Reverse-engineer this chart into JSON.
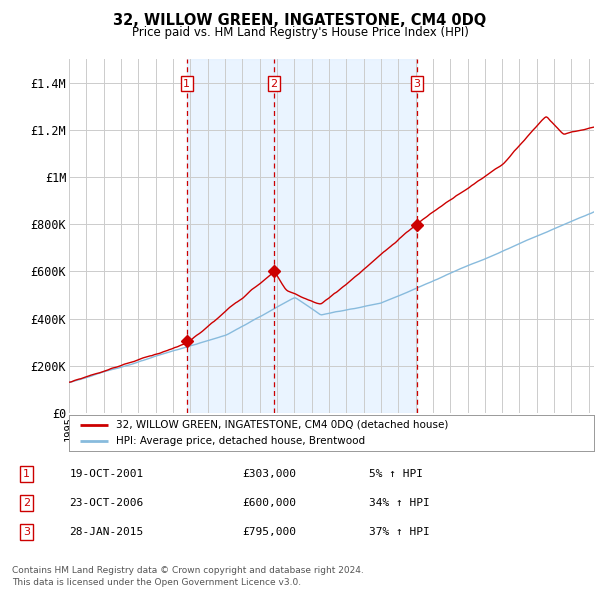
{
  "title": "32, WILLOW GREEN, INGATESTONE, CM4 0DQ",
  "subtitle": "Price paid vs. HM Land Registry's House Price Index (HPI)",
  "ylim": [
    0,
    1500000
  ],
  "yticks": [
    0,
    200000,
    400000,
    600000,
    800000,
    1000000,
    1200000,
    1400000
  ],
  "ytick_labels": [
    "£0",
    "£200K",
    "£400K",
    "£600K",
    "£800K",
    "£1M",
    "£1.2M",
    "£1.4M"
  ],
  "background_color": "#ffffff",
  "grid_color": "#cccccc",
  "property_color": "#cc0000",
  "hpi_color": "#88bbdd",
  "vline_color": "#cc0000",
  "shade_color": "#ddeeff",
  "sale_dates": [
    2001.8,
    2006.81,
    2015.07
  ],
  "sale_prices": [
    303000,
    600000,
    795000
  ],
  "sale_labels": [
    "1",
    "2",
    "3"
  ],
  "legend_property": "32, WILLOW GREEN, INGATESTONE, CM4 0DQ (detached house)",
  "legend_hpi": "HPI: Average price, detached house, Brentwood",
  "table_rows": [
    [
      "1",
      "19-OCT-2001",
      "£303,000",
      "5% ↑ HPI"
    ],
    [
      "2",
      "23-OCT-2006",
      "£600,000",
      "34% ↑ HPI"
    ],
    [
      "3",
      "28-JAN-2015",
      "£795,000",
      "37% ↑ HPI"
    ]
  ],
  "footnote1": "Contains HM Land Registry data © Crown copyright and database right 2024.",
  "footnote2": "This data is licensed under the Open Government Licence v3.0.",
  "xstart": 1995.0,
  "xend": 2025.3
}
